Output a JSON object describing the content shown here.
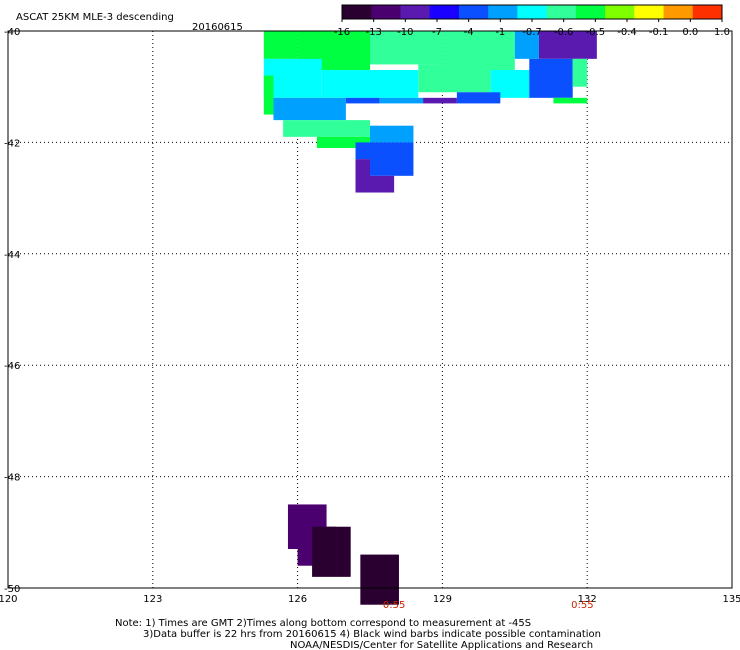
{
  "title": "ASCAT 25KM MLE-3 descending",
  "date": "20160615",
  "colorbar": {
    "ticks": [
      "-16",
      "-13",
      "-10",
      "-7",
      "-4",
      "-1",
      "-0.7",
      "-0.6",
      "-0.5",
      "-0.4",
      "-0.1",
      "0.0",
      "1.0"
    ],
    "colors": [
      "#2a0030",
      "#4b0070",
      "#5a1ab0",
      "#1a00ff",
      "#0a50ff",
      "#00a0ff",
      "#00ffff",
      "#30ff9a",
      "#00ff40",
      "#80ff00",
      "#ffff00",
      "#ff9900",
      "#ff3000"
    ]
  },
  "footer": {
    "line1": "Note: 1) Times are GMT 2)Times along bottom correspond to measurement at -45S",
    "line2": "3)Data buffer is 22 hrs from 20160615 4) Black wind barbs indicate possible contamination",
    "line3": "NOAA/NESDIS/Center for Satellite Applications and Research"
  },
  "chart_data": {
    "type": "heatmap",
    "title": "ASCAT 25KM MLE-3 descending",
    "subtitle": "20160615",
    "xlim": [
      120,
      135
    ],
    "ylim": [
      -50,
      -40
    ],
    "x_ticks": [
      "120",
      "123",
      "126",
      "129",
      "132",
      "135"
    ],
    "y_ticks": [
      "-40",
      "-42",
      "-44",
      "-46",
      "-48",
      "-50"
    ],
    "y_tick_values": [
      -40,
      -42,
      -44,
      -46,
      -48,
      -50
    ],
    "x_tick_values": [
      120,
      123,
      126,
      129,
      132,
      135
    ],
    "grid": true,
    "time_labels": [
      {
        "lon": 128.0,
        "text": "0:55"
      },
      {
        "lon": 131.9,
        "text": "0:55"
      }
    ],
    "cells": [
      {
        "lon0": 125.3,
        "lon1": 126.0,
        "lat0": -40.0,
        "lat1": -40.5,
        "value": "-0.5"
      },
      {
        "lon0": 126.0,
        "lon1": 127.5,
        "lat0": -40.0,
        "lat1": -40.7,
        "value": "-0.5"
      },
      {
        "lon0": 127.5,
        "lon1": 129.0,
        "lat0": -40.0,
        "lat1": -40.6,
        "value": "-0.6"
      },
      {
        "lon0": 129.0,
        "lon1": 130.5,
        "lat0": -40.0,
        "lat1": -40.7,
        "value": "-0.6"
      },
      {
        "lon0": 130.5,
        "lon1": 131.0,
        "lat0": -40.0,
        "lat1": -40.5,
        "value": "-1"
      },
      {
        "lon0": 131.0,
        "lon1": 132.2,
        "lat0": -40.0,
        "lat1": -40.5,
        "value": "-10"
      },
      {
        "lon0": 125.3,
        "lon1": 126.5,
        "lat0": -40.5,
        "lat1": -41.2,
        "value": "-0.7"
      },
      {
        "lon0": 126.5,
        "lon1": 128.5,
        "lat0": -40.7,
        "lat1": -41.2,
        "value": "-0.7"
      },
      {
        "lon0": 128.5,
        "lon1": 130.0,
        "lat0": -40.6,
        "lat1": -41.1,
        "value": "-0.6"
      },
      {
        "lon0": 130.0,
        "lon1": 130.8,
        "lat0": -40.7,
        "lat1": -41.2,
        "value": "-0.7"
      },
      {
        "lon0": 130.8,
        "lon1": 131.7,
        "lat0": -40.5,
        "lat1": -41.2,
        "value": "-4"
      },
      {
        "lon0": 131.7,
        "lon1": 132.0,
        "lat0": -40.5,
        "lat1": -41.0,
        "value": "-0.6"
      },
      {
        "lon0": 125.3,
        "lon1": 125.5,
        "lat0": -40.8,
        "lat1": -41.5,
        "value": "-0.5"
      },
      {
        "lon0": 125.5,
        "lon1": 127.0,
        "lat0": -41.2,
        "lat1": -41.6,
        "value": "-1"
      },
      {
        "lon0": 127.0,
        "lon1": 127.7,
        "lat0": -41.2,
        "lat1": -41.3,
        "value": "-4"
      },
      {
        "lon0": 127.7,
        "lon1": 128.6,
        "lat0": -41.2,
        "lat1": -41.3,
        "value": "-1"
      },
      {
        "lon0": 128.6,
        "lon1": 129.3,
        "lat0": -41.2,
        "lat1": -41.3,
        "value": "-10"
      },
      {
        "lon0": 129.3,
        "lon1": 130.2,
        "lat0": -41.1,
        "lat1": -41.3,
        "value": "-4"
      },
      {
        "lon0": 131.3,
        "lon1": 132.0,
        "lat0": -41.2,
        "lat1": -41.3,
        "value": "-0.5"
      },
      {
        "lon0": 125.7,
        "lon1": 127.5,
        "lat0": -41.6,
        "lat1": -41.9,
        "value": "-0.6"
      },
      {
        "lon0": 126.4,
        "lon1": 127.5,
        "lat0": -41.9,
        "lat1": -42.1,
        "value": "-0.5"
      },
      {
        "lon0": 127.5,
        "lon1": 128.4,
        "lat0": -41.7,
        "lat1": -42.0,
        "value": "-1"
      },
      {
        "lon0": 127.2,
        "lon1": 127.5,
        "lat0": -42.0,
        "lat1": -42.3,
        "value": "-4"
      },
      {
        "lon0": 127.5,
        "lon1": 128.4,
        "lat0": -42.0,
        "lat1": -42.6,
        "value": "-4"
      },
      {
        "lon0": 127.2,
        "lon1": 127.5,
        "lat0": -42.3,
        "lat1": -42.9,
        "value": "-10"
      },
      {
        "lon0": 127.5,
        "lon1": 128.0,
        "lat0": -42.6,
        "lat1": -42.9,
        "value": "-10"
      },
      {
        "lon0": 125.8,
        "lon1": 126.6,
        "lat0": -48.5,
        "lat1": -49.3,
        "value": "-13"
      },
      {
        "lon0": 126.0,
        "lon1": 126.8,
        "lat0": -48.9,
        "lat1": -49.6,
        "value": "-13"
      },
      {
        "lon0": 126.3,
        "lon1": 127.1,
        "lat0": -48.9,
        "lat1": -49.8,
        "value": "-16"
      },
      {
        "lon0": 127.3,
        "lon1": 128.1,
        "lat0": -49.4,
        "lat1": -50.3,
        "value": "-16"
      }
    ]
  }
}
